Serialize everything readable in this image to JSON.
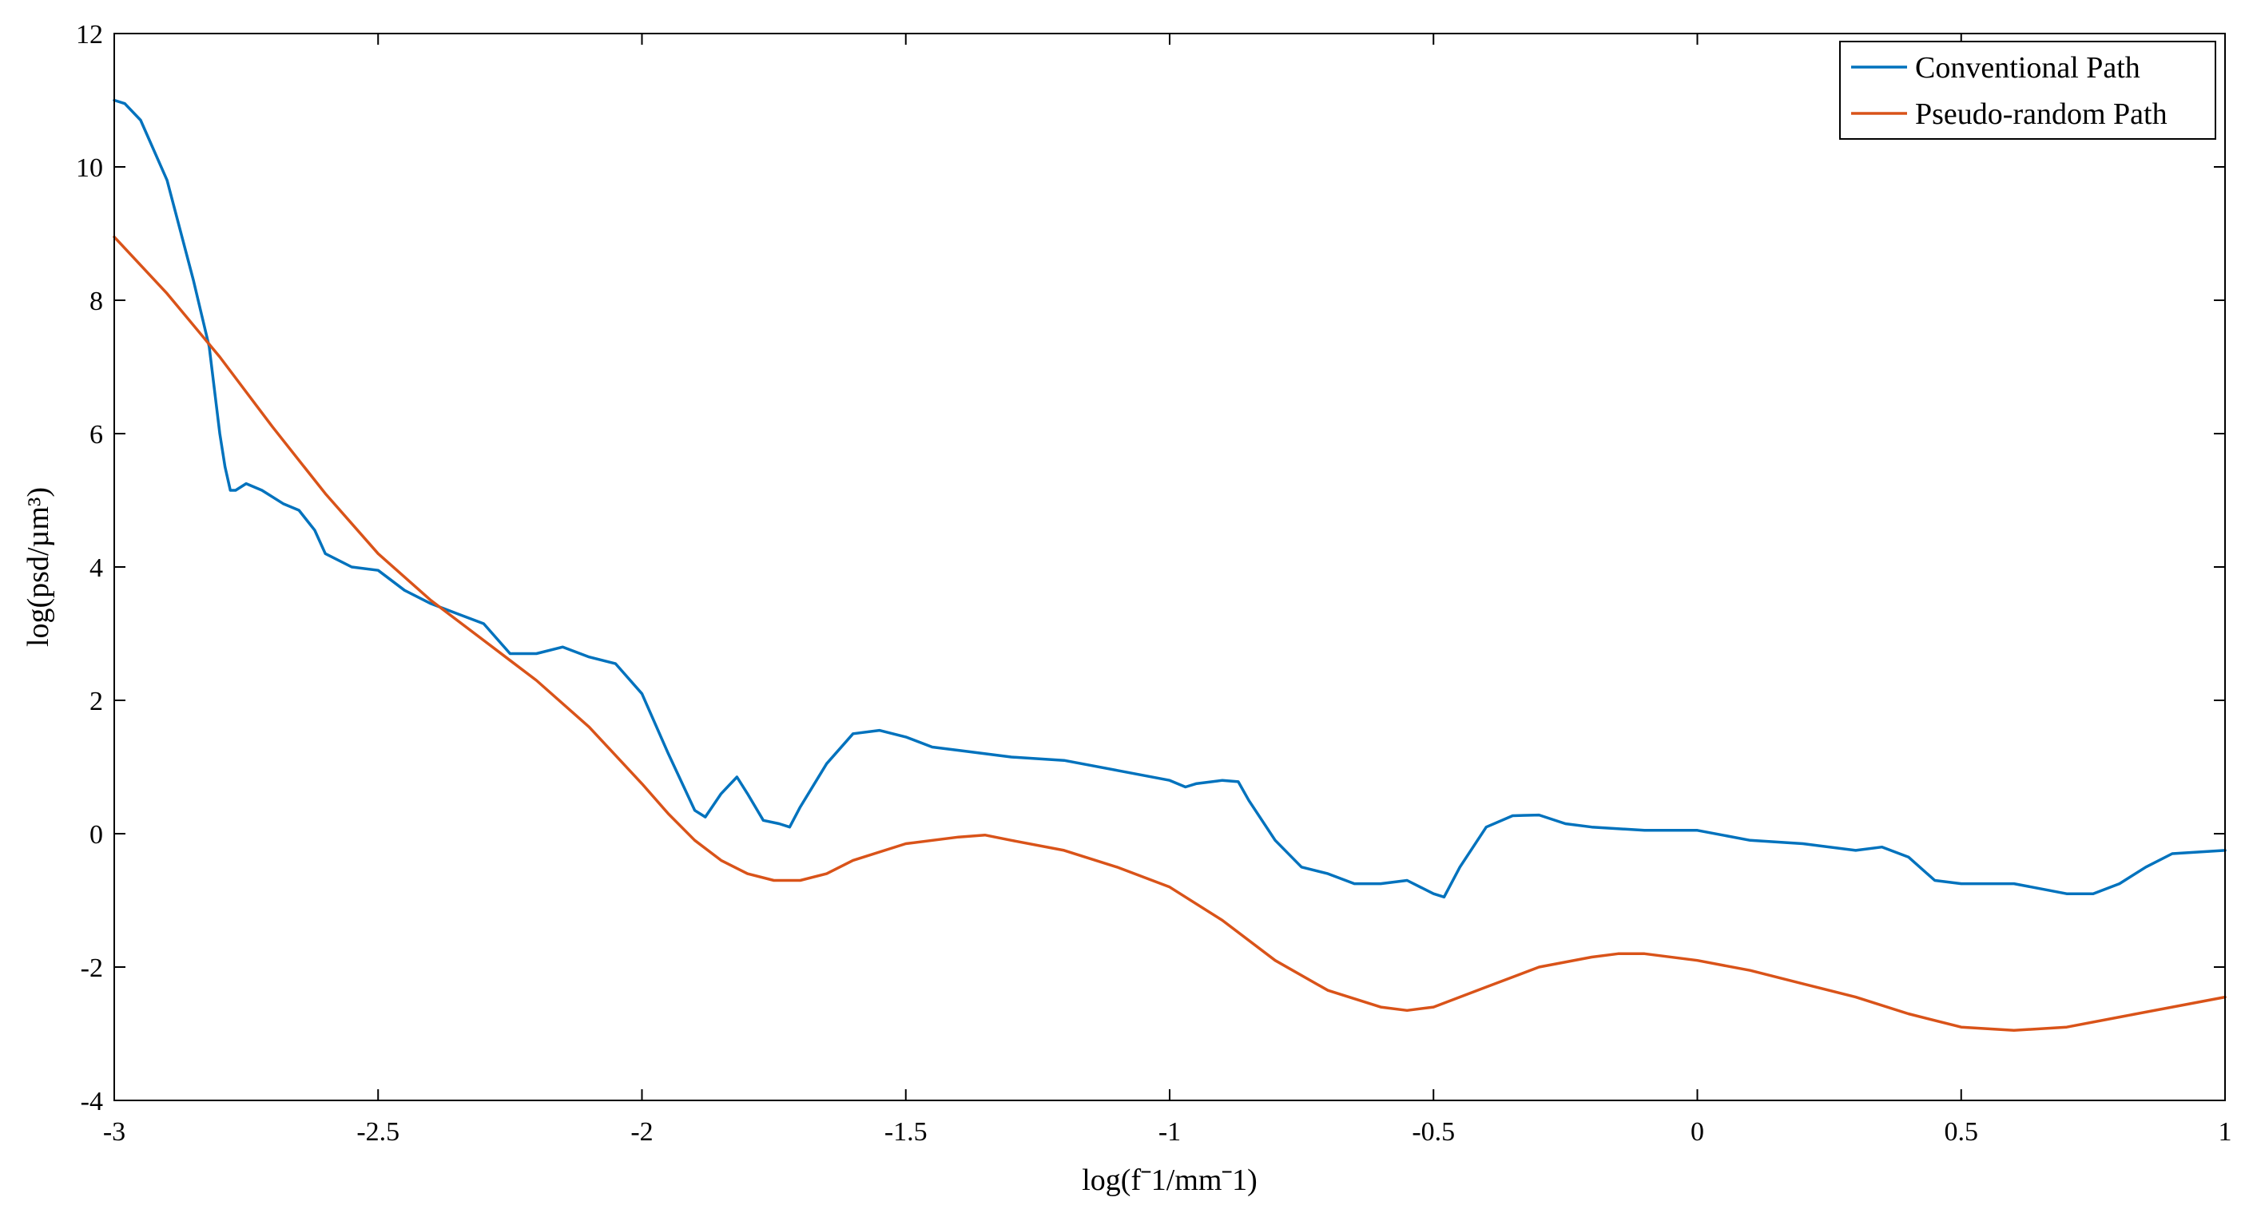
{
  "chart_data": {
    "type": "line",
    "title": "",
    "xlabel": "log(fˉ1/mmˉ1)",
    "ylabel": "log(psd/µm³)",
    "xlim": [
      -3,
      1
    ],
    "ylim": [
      -4,
      12
    ],
    "xticks": [
      -3,
      -2.5,
      -2,
      -1.5,
      -1,
      -0.5,
      0,
      0.5,
      1
    ],
    "xtick_labels": [
      "-3",
      "-2.5",
      "-2",
      "-1.5",
      "-1",
      "-0.5",
      "0",
      "0.5",
      "1"
    ],
    "yticks": [
      -4,
      -2,
      0,
      2,
      4,
      6,
      8,
      10,
      12
    ],
    "ytick_labels": [
      "-4",
      "-2",
      "0",
      "2",
      "4",
      "6",
      "8",
      "10",
      "12"
    ],
    "grid": false,
    "legend_position": "top-right",
    "series": [
      {
        "name": "Conventional Path",
        "color": "#0072BD",
        "x": [
          -3.0,
          -2.98,
          -2.95,
          -2.9,
          -2.85,
          -2.82,
          -2.8,
          -2.79,
          -2.78,
          -2.77,
          -2.75,
          -2.72,
          -2.68,
          -2.65,
          -2.62,
          -2.6,
          -2.55,
          -2.5,
          -2.45,
          -2.4,
          -2.35,
          -2.3,
          -2.25,
          -2.2,
          -2.15,
          -2.1,
          -2.05,
          -2.0,
          -1.95,
          -1.9,
          -1.88,
          -1.85,
          -1.82,
          -1.8,
          -1.77,
          -1.74,
          -1.72,
          -1.7,
          -1.65,
          -1.6,
          -1.55,
          -1.5,
          -1.45,
          -1.4,
          -1.3,
          -1.2,
          -1.1,
          -1.0,
          -0.97,
          -0.95,
          -0.9,
          -0.87,
          -0.85,
          -0.8,
          -0.75,
          -0.7,
          -0.65,
          -0.6,
          -0.55,
          -0.5,
          -0.48,
          -0.45,
          -0.4,
          -0.35,
          -0.3,
          -0.25,
          -0.2,
          -0.1,
          0.0,
          0.1,
          0.2,
          0.3,
          0.35,
          0.4,
          0.45,
          0.5,
          0.6,
          0.7,
          0.75,
          0.8,
          0.85,
          0.9,
          1.0
        ],
        "y": [
          11.0,
          10.95,
          10.7,
          9.8,
          8.3,
          7.3,
          6.0,
          5.5,
          5.15,
          5.15,
          5.25,
          5.15,
          4.95,
          4.85,
          4.55,
          4.2,
          4.0,
          3.95,
          3.65,
          3.45,
          3.3,
          3.15,
          2.7,
          2.7,
          2.8,
          2.65,
          2.55,
          2.1,
          1.2,
          0.35,
          0.25,
          0.6,
          0.85,
          0.6,
          0.2,
          0.15,
          0.1,
          0.4,
          1.05,
          1.5,
          1.55,
          1.45,
          1.3,
          1.25,
          1.15,
          1.1,
          0.95,
          0.8,
          0.7,
          0.75,
          0.8,
          0.78,
          0.5,
          -0.1,
          -0.5,
          -0.6,
          -0.75,
          -0.75,
          -0.7,
          -0.9,
          -0.95,
          -0.5,
          0.1,
          0.27,
          0.28,
          0.15,
          0.1,
          0.05,
          0.05,
          -0.1,
          -0.15,
          -0.25,
          -0.2,
          -0.35,
          -0.7,
          -0.75,
          -0.75,
          -0.9,
          -0.9,
          -0.75,
          -0.5,
          -0.3,
          -0.25
        ]
      },
      {
        "name": "Pseudo-random Path",
        "color": "#D95319",
        "x": [
          -3.0,
          -2.9,
          -2.8,
          -2.7,
          -2.6,
          -2.5,
          -2.4,
          -2.3,
          -2.2,
          -2.1,
          -2.0,
          -1.95,
          -1.9,
          -1.85,
          -1.8,
          -1.75,
          -1.7,
          -1.65,
          -1.6,
          -1.5,
          -1.4,
          -1.35,
          -1.3,
          -1.2,
          -1.1,
          -1.0,
          -0.9,
          -0.8,
          -0.7,
          -0.6,
          -0.55,
          -0.5,
          -0.4,
          -0.3,
          -0.2,
          -0.15,
          -0.1,
          0.0,
          0.1,
          0.2,
          0.3,
          0.4,
          0.5,
          0.6,
          0.7,
          0.8,
          0.9,
          1.0
        ],
        "y": [
          8.95,
          8.1,
          7.15,
          6.1,
          5.1,
          4.2,
          3.5,
          2.9,
          2.3,
          1.6,
          0.75,
          0.3,
          -0.1,
          -0.4,
          -0.6,
          -0.7,
          -0.7,
          -0.6,
          -0.4,
          -0.15,
          -0.05,
          -0.02,
          -0.1,
          -0.25,
          -0.5,
          -0.8,
          -1.3,
          -1.9,
          -2.35,
          -2.6,
          -2.65,
          -2.6,
          -2.3,
          -2.0,
          -1.85,
          -1.8,
          -1.8,
          -1.9,
          -2.05,
          -2.25,
          -2.45,
          -2.7,
          -2.9,
          -2.95,
          -2.9,
          -2.75,
          -2.6,
          -2.45
        ]
      }
    ]
  }
}
